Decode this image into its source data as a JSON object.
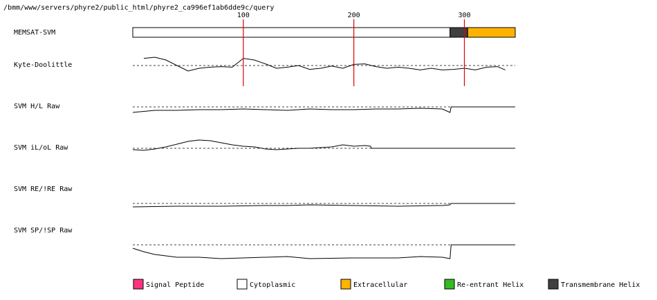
{
  "path": "/bmm/www/servers/phyre2/public_html/phyre2_ca996ef1ab6dde9c/query",
  "chart_data": {
    "type": "memsat",
    "xlim": [
      0,
      346
    ],
    "xticks": [
      100,
      200,
      300
    ],
    "tick_color": "#dd0000",
    "topology": {
      "name": "MEMSAT-SVM",
      "segments": [
        {
          "start": 0,
          "end": 287,
          "color": "#ffffff"
        },
        {
          "start": 287,
          "end": 303,
          "color": "#404040"
        },
        {
          "start": 303,
          "end": 346,
          "color": "#ffb300"
        }
      ]
    },
    "series": [
      {
        "name": "Kyte-Doolittle",
        "ylim": [
          -5,
          5
        ],
        "x": [
          10,
          20,
          30,
          40,
          50,
          60,
          70,
          80,
          90,
          100,
          110,
          120,
          130,
          140,
          150,
          160,
          170,
          180,
          190,
          200,
          210,
          220,
          230,
          240,
          250,
          260,
          270,
          280,
          290,
          300,
          310,
          320,
          330,
          337
        ],
        "values": [
          2.6,
          3,
          2,
          0,
          -2,
          -1,
          -0.6,
          -0.4,
          -0.6,
          2.6,
          2,
          0.6,
          -1,
          -0.6,
          0,
          -1.4,
          -1,
          -0.2,
          -1,
          0.4,
          0.6,
          -0.4,
          -1,
          -0.6,
          -1,
          -1.6,
          -1,
          -1.6,
          -1.4,
          -1,
          -1.6,
          -0.6,
          -0.4,
          -1.6
        ]
      },
      {
        "name": "SVM H/L Raw",
        "ylim": [
          -20,
          20
        ],
        "x": [
          0,
          20,
          40,
          60,
          80,
          100,
          120,
          140,
          160,
          180,
          200,
          220,
          240,
          260,
          280,
          287,
          288,
          346
        ],
        "values": [
          -8,
          -5,
          -5,
          -4,
          -4,
          -3,
          -4,
          -5,
          -3,
          -4,
          -4,
          -3,
          -3,
          -2,
          -3,
          -8,
          0,
          0
        ]
      },
      {
        "name": "SVM iL/oL Raw",
        "ylim": [
          -20,
          20
        ],
        "x": [
          0,
          10,
          20,
          30,
          40,
          50,
          60,
          70,
          80,
          90,
          100,
          110,
          120,
          130,
          140,
          150,
          160,
          170,
          180,
          190,
          200,
          210,
          215,
          216,
          346
        ],
        "values": [
          -2,
          -3,
          -1,
          2,
          6,
          10,
          12,
          11,
          8,
          5,
          3,
          2,
          -1,
          -2,
          -1,
          0,
          0,
          1,
          2,
          5,
          3,
          4,
          3,
          0,
          0
        ]
      },
      {
        "name": "SVM RE/!RE Raw",
        "ylim": [
          -20,
          20
        ],
        "x": [
          0,
          40,
          80,
          120,
          140,
          160,
          200,
          240,
          280,
          287,
          288,
          346
        ],
        "values": [
          -5,
          -4,
          -4,
          -3,
          -3,
          -2,
          -3,
          -4,
          -3,
          -2,
          0,
          0
        ]
      },
      {
        "name": "SVM SP/!SP Raw",
        "ylim": [
          -20,
          20
        ],
        "x": [
          0,
          10,
          20,
          40,
          60,
          80,
          100,
          140,
          160,
          200,
          240,
          260,
          280,
          287,
          288,
          346
        ],
        "values": [
          -5,
          -10,
          -14,
          -18,
          -18,
          -20,
          -19,
          -17,
          -20,
          -19,
          -19,
          -17,
          -18,
          -20,
          0,
          0
        ]
      }
    ],
    "legend": [
      {
        "label": "Signal Peptide",
        "color": "#ff3380"
      },
      {
        "label": "Cytoplasmic",
        "color": "#ffffff"
      },
      {
        "label": "Extracellular",
        "color": "#ffb300"
      },
      {
        "label": "Re-entrant Helix",
        "color": "#33bb22"
      },
      {
        "label": "Transmembrane Helix",
        "color": "#404040"
      }
    ]
  }
}
